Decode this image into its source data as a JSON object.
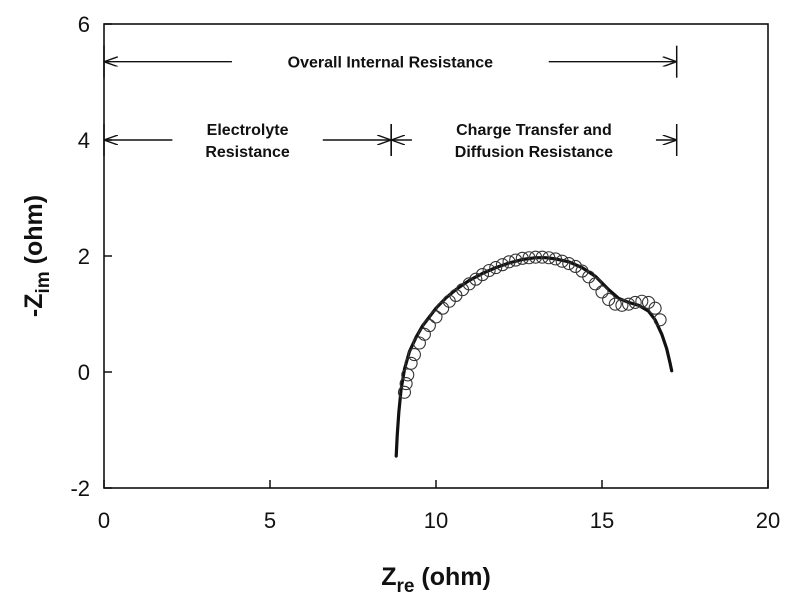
{
  "chart_data": {
    "type": "scatter",
    "xlabel": {
      "main": "Z",
      "sub": "re",
      "rest": " (ohm)"
    },
    "ylabel": {
      "sign": "-",
      "main": "Z",
      "sub": "im",
      "rest": " (ohm)"
    },
    "xlim": [
      0,
      20
    ],
    "ylim": [
      -2,
      6
    ],
    "xticks": [
      "0",
      "5",
      "10",
      "15",
      "20"
    ],
    "yticks": [
      "-2",
      "0",
      "2",
      "4",
      "6"
    ],
    "grid": false,
    "series": [
      {
        "kind": "markers",
        "marker": "open-circle",
        "color": "#333333",
        "x": [
          9.05,
          9.1,
          9.15,
          9.25,
          9.35,
          9.5,
          9.65,
          9.8,
          10.0,
          10.2,
          10.4,
          10.6,
          10.8,
          11.0,
          11.2,
          11.4,
          11.6,
          11.8,
          12.0,
          12.2,
          12.4,
          12.6,
          12.8,
          13.0,
          13.2,
          13.4,
          13.6,
          13.8,
          14.0,
          14.2,
          14.4,
          14.6,
          14.8,
          15.0,
          15.2,
          15.4,
          15.6,
          15.8,
          16.0,
          16.2,
          16.4,
          16.6,
          16.75
        ],
        "y": [
          -0.35,
          -0.2,
          -0.05,
          0.15,
          0.3,
          0.5,
          0.65,
          0.8,
          0.95,
          1.1,
          1.22,
          1.32,
          1.42,
          1.52,
          1.6,
          1.68,
          1.75,
          1.8,
          1.85,
          1.9,
          1.93,
          1.96,
          1.97,
          1.98,
          1.98,
          1.97,
          1.95,
          1.91,
          1.87,
          1.82,
          1.74,
          1.64,
          1.52,
          1.38,
          1.25,
          1.17,
          1.15,
          1.17,
          1.2,
          1.22,
          1.2,
          1.1,
          0.9
        ]
      },
      {
        "kind": "line",
        "color": "#111111",
        "x": [
          8.8,
          8.83,
          8.88,
          8.95,
          9.05,
          9.2,
          9.4,
          9.6,
          9.8,
          10.0,
          10.3,
          10.6,
          11.0,
          11.4,
          11.8,
          12.2,
          12.6,
          13.0,
          13.3,
          13.6,
          14.0,
          14.4,
          14.8,
          15.2,
          15.5,
          15.8,
          16.1,
          16.4,
          16.6,
          16.8,
          16.95,
          17.05,
          17.1
        ],
        "y": [
          -1.45,
          -1.1,
          -0.7,
          -0.3,
          0.05,
          0.35,
          0.6,
          0.8,
          0.95,
          1.1,
          1.28,
          1.42,
          1.58,
          1.7,
          1.8,
          1.88,
          1.94,
          1.97,
          1.97,
          1.95,
          1.9,
          1.8,
          1.65,
          1.42,
          1.27,
          1.2,
          1.15,
          1.05,
          0.9,
          0.65,
          0.4,
          0.15,
          0.02
        ]
      }
    ],
    "annotations": [
      {
        "name": "overall",
        "lines": [
          "Overall Internal Resistance"
        ],
        "x0": 0,
        "x1": 17.25,
        "y": 5.35
      },
      {
        "name": "electrolyte",
        "lines": [
          "Electrolyte",
          "Resistance"
        ],
        "x0": 0,
        "x1": 8.65,
        "y": 4.0
      },
      {
        "name": "charge-transfer",
        "lines": [
          "Charge Transfer and",
          "Diffusion Resistance"
        ],
        "x0": 8.65,
        "x1": 17.25,
        "y": 4.0
      }
    ]
  }
}
